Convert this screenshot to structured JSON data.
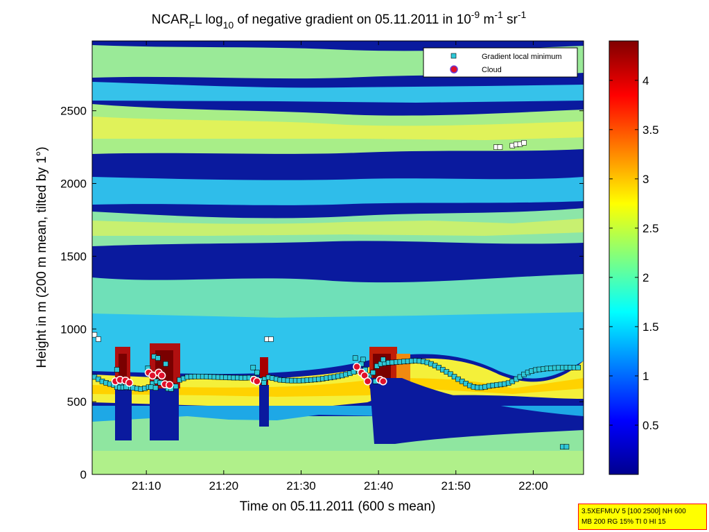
{
  "chart_data": {
    "type": "heatmap",
    "title": {
      "p1": "NCAR",
      "sub1": "F",
      "p2": "L log",
      "sub2": "10",
      "p3": " of negative gradient on 05.11.2011 in 10",
      "sup1": "-9",
      "p4": " m",
      "sup2": "-1",
      "p5": " sr",
      "sup3": "-1"
    },
    "xlabel": "Time on 05.11.2011 (600 s mean)",
    "ylabel": "Height in m (200 m mean, tilted by 1°)",
    "x_ticks": [
      "21:10",
      "21:20",
      "21:30",
      "21:40",
      "21:50",
      "22:00"
    ],
    "x_tick_minutes": [
      1270,
      1280,
      1290,
      1300,
      1310,
      1320
    ],
    "xlim_minutes": [
      1263,
      1326.5
    ],
    "y_ticks": [
      "0",
      "500",
      "1000",
      "1500",
      "2000",
      "2500"
    ],
    "y_tick_values": [
      0,
      500,
      1000,
      1500,
      2000,
      2500
    ],
    "ylim": [
      0,
      2980
    ],
    "colorbar": {
      "ticks": [
        "0.5",
        "1",
        "1.5",
        "2",
        "2.5",
        "3",
        "3.5",
        "4"
      ],
      "tick_values": [
        0.5,
        1,
        1.5,
        2,
        2.5,
        3,
        3.5,
        4
      ],
      "range": [
        0,
        4.4
      ],
      "colormap": "jet"
    },
    "legend": {
      "placement": "top-right",
      "entries": [
        {
          "label": "Gradient local minimum",
          "marker": "square",
          "color": "#2ec8d8"
        },
        {
          "label": "Cloud",
          "marker": "circle",
          "color": "#e0102a"
        }
      ]
    },
    "series": [
      {
        "name": "Gradient local minimum",
        "points": [
          [
            1263.3,
            670
          ],
          [
            1263.8,
            655
          ],
          [
            1264.3,
            640
          ],
          [
            1264.8,
            630
          ],
          [
            1265.3,
            622
          ],
          [
            1265.8,
            615
          ],
          [
            1266.3,
            612
          ],
          [
            1266.8,
            608
          ],
          [
            1267.3,
            602
          ],
          [
            1267.8,
            598
          ],
          [
            1268.3,
            595
          ],
          [
            1268.8,
            590
          ],
          [
            1269.3,
            587
          ],
          [
            1269.8,
            592
          ],
          [
            1270.3,
            600
          ],
          [
            1270.8,
            625
          ],
          [
            1271.3,
            640
          ],
          [
            1271.8,
            630
          ],
          [
            1272.3,
            620
          ],
          [
            1272.8,
            612
          ],
          [
            1273.3,
            608
          ],
          [
            1273.8,
            605
          ],
          [
            1274.3,
            650
          ],
          [
            1274.8,
            660
          ],
          [
            1275.3,
            670
          ],
          [
            1275.8,
            672
          ],
          [
            1276.3,
            673
          ],
          [
            1276.8,
            673
          ],
          [
            1277.3,
            673
          ],
          [
            1277.8,
            672
          ],
          [
            1278.3,
            671
          ],
          [
            1278.8,
            670
          ],
          [
            1279.3,
            669
          ],
          [
            1279.8,
            668
          ],
          [
            1280.3,
            667
          ],
          [
            1280.8,
            666
          ],
          [
            1281.3,
            665
          ],
          [
            1281.8,
            665
          ],
          [
            1282.3,
            664
          ],
          [
            1282.8,
            664
          ],
          [
            1283.3,
            665
          ],
          [
            1283.8,
            663
          ],
          [
            1284.3,
            655
          ],
          [
            1284.8,
            648
          ],
          [
            1285.3,
            655
          ],
          [
            1285.8,
            668
          ],
          [
            1286.3,
            662
          ],
          [
            1286.8,
            656
          ],
          [
            1287.3,
            650
          ],
          [
            1287.8,
            648
          ],
          [
            1288.3,
            646
          ],
          [
            1288.8,
            645
          ],
          [
            1289.3,
            645
          ],
          [
            1289.8,
            645
          ],
          [
            1290.3,
            646
          ],
          [
            1290.8,
            648
          ],
          [
            1291.3,
            650
          ],
          [
            1291.8,
            652
          ],
          [
            1292.3,
            655
          ],
          [
            1292.8,
            658
          ],
          [
            1293.3,
            662
          ],
          [
            1293.8,
            666
          ],
          [
            1294.3,
            670
          ],
          [
            1294.8,
            675
          ],
          [
            1295.3,
            680
          ],
          [
            1295.8,
            688
          ],
          [
            1296.3,
            695
          ],
          [
            1296.8,
            705
          ],
          [
            1297.3,
            730
          ],
          [
            1297.8,
            760
          ],
          [
            1298.3,
            720
          ],
          [
            1298.8,
            680
          ],
          [
            1299.3,
            700
          ],
          [
            1299.8,
            745
          ],
          [
            1300.3,
            760
          ],
          [
            1300.8,
            765
          ],
          [
            1301.3,
            768
          ],
          [
            1301.8,
            770
          ],
          [
            1302.3,
            772
          ],
          [
            1302.8,
            774
          ],
          [
            1303.3,
            776
          ],
          [
            1303.8,
            778
          ],
          [
            1304.3,
            780
          ],
          [
            1304.8,
            782
          ],
          [
            1305.3,
            780
          ],
          [
            1305.8,
            776
          ],
          [
            1306.3,
            770
          ],
          [
            1306.8,
            760
          ],
          [
            1307.3,
            748
          ],
          [
            1307.8,
            735
          ],
          [
            1308.3,
            720
          ],
          [
            1308.8,
            705
          ],
          [
            1309.3,
            690
          ],
          [
            1309.8,
            672
          ],
          [
            1310.3,
            655
          ],
          [
            1310.8,
            640
          ],
          [
            1311.3,
            625
          ],
          [
            1311.8,
            612
          ],
          [
            1312.3,
            602
          ],
          [
            1312.8,
            598
          ],
          [
            1313.3,
            598
          ],
          [
            1313.8,
            602
          ],
          [
            1314.3,
            608
          ],
          [
            1314.8,
            612
          ],
          [
            1315.3,
            615
          ],
          [
            1315.8,
            618
          ],
          [
            1316.3,
            622
          ],
          [
            1316.8,
            628
          ],
          [
            1317.3,
            640
          ],
          [
            1317.8,
            655
          ],
          [
            1318.3,
            670
          ],
          [
            1318.8,
            688
          ],
          [
            1319.3,
            700
          ],
          [
            1319.8,
            710
          ],
          [
            1320.3,
            718
          ],
          [
            1320.8,
            722
          ],
          [
            1321.3,
            725
          ],
          [
            1321.8,
            728
          ],
          [
            1322.3,
            730
          ],
          [
            1322.8,
            732
          ],
          [
            1323.3,
            733
          ],
          [
            1323.8,
            733
          ],
          [
            1324.3,
            734
          ],
          [
            1324.8,
            734
          ],
          [
            1325.3,
            735
          ],
          [
            1325.8,
            735
          ],
          [
            1266.2,
            600
          ],
          [
            1266.6,
            598
          ],
          [
            1267.0,
            598
          ],
          [
            1267.4,
            600
          ],
          [
            1266.2,
            720
          ],
          [
            1270.2,
            730
          ],
          [
            1271.0,
            810
          ],
          [
            1271.5,
            800
          ],
          [
            1272.5,
            760
          ],
          [
            1270.6,
            600
          ],
          [
            1271.2,
            595
          ],
          [
            1272.8,
            590
          ],
          [
            1273.2,
            588
          ],
          [
            1283.8,
            735
          ],
          [
            1284.3,
            700
          ],
          [
            1285.2,
            630
          ],
          [
            1297.0,
            800
          ],
          [
            1298.0,
            790
          ],
          [
            1297.5,
            710
          ],
          [
            1298.5,
            660
          ],
          [
            1299.6,
            640
          ],
          [
            1300.6,
            790
          ],
          [
            1263.3,
            960
          ],
          [
            1263.8,
            930
          ],
          [
            1285.6,
            930
          ],
          [
            1286.1,
            930
          ],
          [
            1315.2,
            2250
          ],
          [
            1315.7,
            2250
          ],
          [
            1317.3,
            2260
          ],
          [
            1317.8,
            2268
          ],
          [
            1318.3,
            2270
          ],
          [
            1318.8,
            2280
          ],
          [
            1323.8,
            190
          ],
          [
            1324.3,
            190
          ]
        ]
      },
      {
        "name": "Cloud",
        "points": [
          [
            1266.0,
            640
          ],
          [
            1266.6,
            650
          ],
          [
            1267.3,
            645
          ],
          [
            1267.8,
            630
          ],
          [
            1270.3,
            700
          ],
          [
            1270.8,
            680
          ],
          [
            1271.6,
            700
          ],
          [
            1272.0,
            680
          ],
          [
            1272.4,
            620
          ],
          [
            1273.0,
            615
          ],
          [
            1283.9,
            650
          ],
          [
            1284.3,
            640
          ],
          [
            1297.2,
            740
          ],
          [
            1297.8,
            700
          ],
          [
            1298.2,
            680
          ],
          [
            1298.6,
            640
          ],
          [
            1300.2,
            650
          ],
          [
            1300.6,
            640
          ]
        ]
      }
    ]
  },
  "infobox": {
    "line1": "3.5XEFMUV 5 [100 2500] NH 600",
    "line2": "MB 200 RG 15% TI 0 HI 15"
  }
}
